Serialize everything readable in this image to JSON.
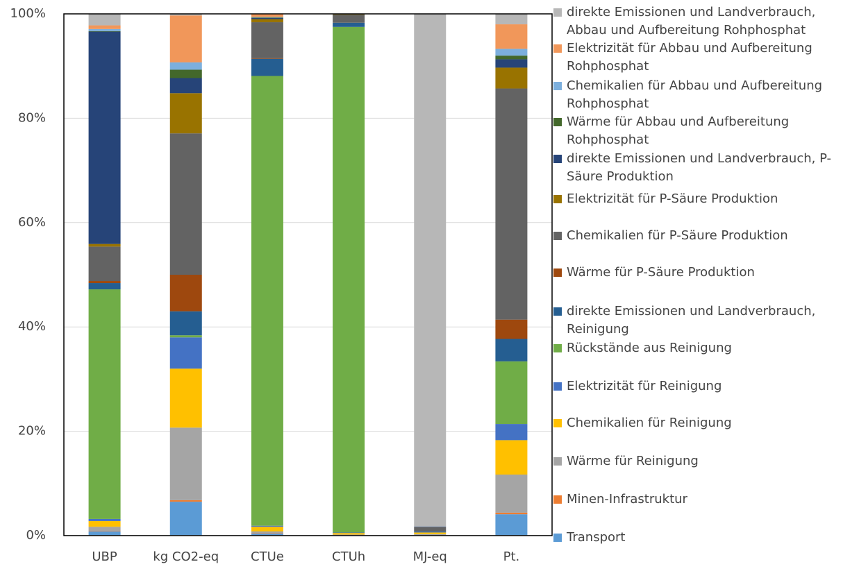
{
  "chart_data": {
    "type": "stacked-bar",
    "categories": [
      "UBP",
      "kg CO2-eq",
      "CTUe",
      "CTUh",
      "MJ-eq",
      "Pt."
    ],
    "ylim": [
      0,
      100
    ],
    "yticks": [
      {
        "value": 0,
        "label": "0%"
      },
      {
        "value": 20,
        "label": "20%"
      },
      {
        "value": 40,
        "label": "40%"
      },
      {
        "value": 60,
        "label": "60%"
      },
      {
        "value": 80,
        "label": "80%"
      },
      {
        "value": 100,
        "label": "100%"
      }
    ],
    "grid": true,
    "legend": "right",
    "series": [
      {
        "name": "Transport",
        "color": "#5b9bd5",
        "values": [
          0.8,
          6.5,
          0.4,
          0.1,
          0.1,
          4.1
        ]
      },
      {
        "name": "Minen-Infrastruktur",
        "color": "#ed7d31",
        "values": [
          0.1,
          0.3,
          0.1,
          0,
          0,
          0.3
        ]
      },
      {
        "name": "Wärme für Reinigung",
        "color": "#a5a5a5",
        "values": [
          0.8,
          13.9,
          0.3,
          0.1,
          0.2,
          7.3
        ]
      },
      {
        "name": "Chemikalien für Reinigung",
        "color": "#ffc000",
        "values": [
          1.1,
          11.3,
          0.9,
          0.3,
          0.3,
          6.6
        ]
      },
      {
        "name": "Elektrizität für Reinigung",
        "color": "#4472c4",
        "values": [
          0.4,
          6.0,
          0.2,
          0.1,
          0.1,
          3.1
        ]
      },
      {
        "name": "Rückstände aus Reinigung",
        "color": "#70ad47",
        "values": [
          44.0,
          0.4,
          86.2,
          96.9,
          0,
          12.0
        ]
      },
      {
        "name": "direkte Emissionen und Landverbrauch, Reinigung",
        "color": "#255e91",
        "values": [
          1.2,
          4.6,
          3.3,
          0.8,
          0.1,
          4.3
        ]
      },
      {
        "name": "Wärme für P-Säure Produktion",
        "color": "#9e480e",
        "values": [
          0.4,
          7.0,
          0.1,
          0,
          0,
          3.7
        ]
      },
      {
        "name": "Chemikalien für P-Säure Produktion",
        "color": "#636363",
        "values": [
          6.6,
          27.1,
          6.9,
          1.5,
          0.8,
          44.3
        ]
      },
      {
        "name": "Elektrizität für P-Säure Produktion",
        "color": "#997300",
        "values": [
          0.5,
          7.7,
          0.6,
          0.1,
          0,
          4.0
        ]
      },
      {
        "name": "direkte Emissionen und Landverbrauch, P-Säure Produktion",
        "color": "#264478",
        "values": [
          40.7,
          2.9,
          0.2,
          0.1,
          0.1,
          1.6
        ]
      },
      {
        "name": "Wärme für Abbau und Aufbereitung Rohphosphat",
        "color": "#43682b",
        "values": [
          0.1,
          1.6,
          0.1,
          0,
          0,
          0.7
        ]
      },
      {
        "name": "Chemikalien für Abbau und Aufbereitung Rohphosphat",
        "color": "#7cafdd",
        "values": [
          0.4,
          1.4,
          0.1,
          0,
          0,
          1.3
        ]
      },
      {
        "name": "Elektrizität für Abbau und Aufbereitung Rohphosphat",
        "color": "#f1975a",
        "values": [
          0.7,
          9.0,
          0.6,
          0,
          0,
          4.7
        ]
      },
      {
        "name": "direkte Emissionen und Landverbrauch, Abbau und Aufbereitung Rohphosphat",
        "color": "#b7b7b7",
        "values": [
          2.2,
          0.3,
          0,
          0,
          98.3,
          2.0
        ]
      }
    ]
  }
}
